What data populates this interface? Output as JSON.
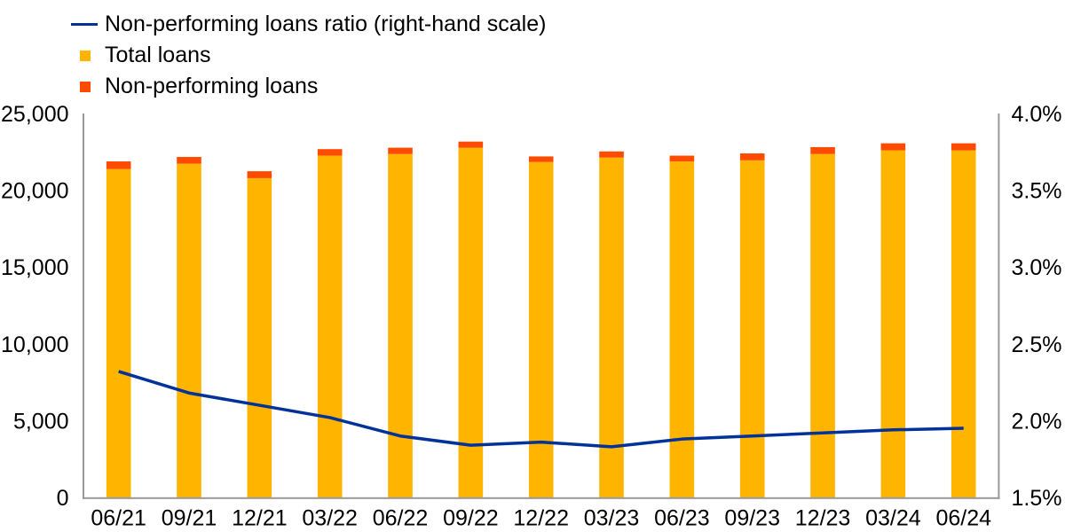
{
  "legend": {
    "items": [
      {
        "label": "Non-performing loans ratio (right-hand scale)",
        "marker": "line",
        "color": "#003299"
      },
      {
        "label": "Total loans",
        "marker": "square",
        "color": "#ffb400"
      },
      {
        "label": "Non-performing loans",
        "marker": "square",
        "color": "#ff4b00"
      }
    ]
  },
  "chart_data": {
    "type": "bar",
    "subtype": "stacked-bars-with-line",
    "categories": [
      "06/21",
      "09/21",
      "12/21",
      "03/22",
      "06/22",
      "09/22",
      "12/22",
      "03/23",
      "06/23",
      "09/23",
      "12/23",
      "03/24",
      "06/24"
    ],
    "series": [
      {
        "name": "Total loans",
        "type": "bar",
        "axis": "left",
        "color": "#ffb400",
        "values": [
          21380,
          21730,
          20790,
          22260,
          22360,
          22770,
          21840,
          22130,
          21880,
          21950,
          22360,
          22600,
          22600
        ]
      },
      {
        "name": "Non-performing loans",
        "type": "bar",
        "axis": "left",
        "color": "#ff4b00",
        "values": [
          500,
          440,
          450,
          420,
          410,
          400,
          365,
          400,
          375,
          450,
          450,
          460,
          460
        ]
      },
      {
        "name": "Non-performing loans ratio (right-hand scale)",
        "type": "line",
        "axis": "right",
        "color": "#003299",
        "values": [
          2.32,
          2.18,
          2.1,
          2.02,
          1.9,
          1.84,
          1.86,
          1.83,
          1.88,
          1.9,
          1.92,
          1.94,
          1.95
        ]
      }
    ],
    "left_axis": {
      "min": 0,
      "max": 25000,
      "tick_values": [
        0,
        5000,
        10000,
        15000,
        20000,
        25000
      ],
      "tick_labels": [
        "0",
        "5,000",
        "10,000",
        "15,000",
        "20,000",
        "25,000"
      ]
    },
    "right_axis": {
      "min": 1.5,
      "max": 4.0,
      "tick_values": [
        1.5,
        2.0,
        2.5,
        3.0,
        3.5,
        4.0
      ],
      "tick_labels": [
        "1.5%",
        "2.0%",
        "2.5%",
        "3.0%",
        "3.5%",
        "4.0%"
      ]
    },
    "title": "",
    "grid": false,
    "legend_position": "top-left",
    "axis_line_color": "#999999"
  }
}
